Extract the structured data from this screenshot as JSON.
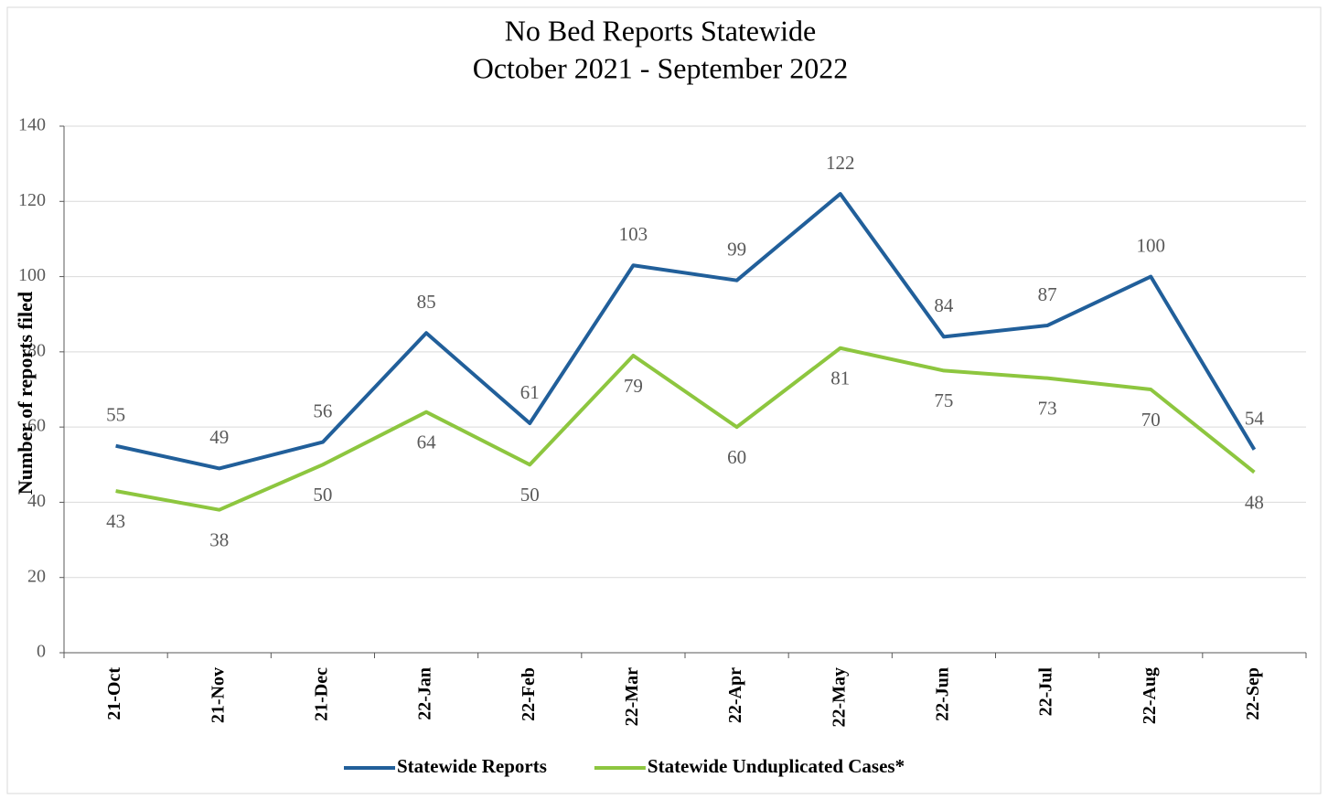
{
  "chart_data": {
    "type": "line",
    "title": "No Bed Reports Statewide",
    "subtitle": "October 2021 - September 2022",
    "y_label": "Number of reports filed",
    "categories": [
      "21-Oct",
      "21-Nov",
      "21-Dec",
      "22-Jan",
      "22-Feb",
      "22-Mar",
      "22-Apr",
      "22-May",
      "22-Jun",
      "22-Jul",
      "22-Aug",
      "22-Sep"
    ],
    "series": [
      {
        "name": "Statewide Reports",
        "color": "#215f9a",
        "values": [
          55,
          49,
          56,
          85,
          61,
          103,
          99,
          122,
          84,
          87,
          100,
          54
        ]
      },
      {
        "name": "Statewide Unduplicated Cases*",
        "color": "#8dc63f",
        "values": [
          43,
          38,
          50,
          64,
          50,
          79,
          60,
          81,
          75,
          73,
          70,
          48
        ]
      }
    ],
    "ylim": [
      0,
      140
    ],
    "yticks": [
      0,
      20,
      40,
      60,
      80,
      100,
      120,
      140
    ],
    "grid": true,
    "legend": "bottom"
  }
}
